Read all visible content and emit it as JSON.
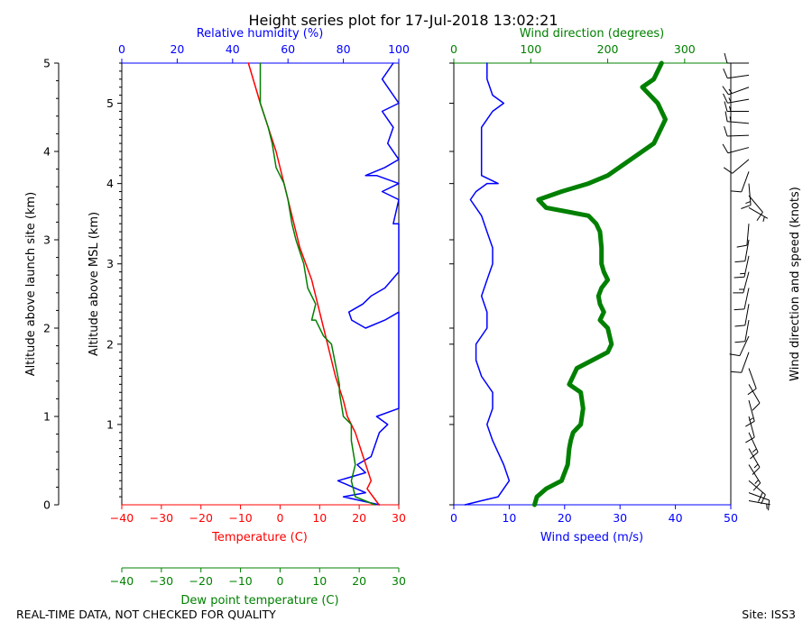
{
  "figure": {
    "title": "Height series plot for 17-Jul-2018 13:02:21",
    "footer_left": "REAL-TIME DATA, NOT CHECKED FOR QUALITY",
    "footer_right": "Site: ISS3"
  },
  "colors": {
    "red": "#ff0000",
    "green": "#008000",
    "blue": "#0000ff",
    "black": "#000000"
  },
  "chart_data": [
    {
      "type": "line",
      "panel": "thermo",
      "title": "Height series plot for 17-Jul-2018 13:02:21",
      "ylabel_outer": "Altitude above launch site (km)",
      "ylabel_inner": "Altitude above MSL (km)",
      "y_outer": {
        "range": [
          0,
          5
        ],
        "ticks": [
          "0",
          "1",
          "2",
          "3",
          "4",
          "5"
        ]
      },
      "y_inner": {
        "ticks": [
          "1",
          "2",
          "3",
          "4",
          "5"
        ]
      },
      "x_temperature": {
        "label": "Temperature (C)",
        "range": [
          -40,
          30
        ],
        "ticks": [
          "−40",
          "−30",
          "−20",
          "−10",
          "0",
          "10",
          "20",
          "30"
        ]
      },
      "x_dewpoint": {
        "label": "Dew point temperature (C)",
        "range": [
          -40,
          30
        ],
        "ticks": [
          "−40",
          "−30",
          "−20",
          "−10",
          "0",
          "10",
          "20",
          "30"
        ]
      },
      "x_humidity": {
        "label": "Relative humidity (%)",
        "range": [
          0,
          100
        ],
        "ticks": [
          "0",
          "20",
          "40",
          "60",
          "80",
          "100"
        ]
      },
      "series": [
        {
          "name": "Temperature",
          "axis": "temperature",
          "color": "#ff0000",
          "points": [
            [
              25,
              0
            ],
            [
              22,
              0.2
            ],
            [
              23,
              0.3
            ],
            [
              21,
              0.6
            ],
            [
              19,
              0.9
            ],
            [
              17,
              1.1
            ],
            [
              16,
              1.3
            ],
            [
              14,
              1.6
            ],
            [
              12,
              2.0
            ],
            [
              10,
              2.4
            ],
            [
              8,
              2.8
            ],
            [
              5,
              3.2
            ],
            [
              3,
              3.6
            ],
            [
              1,
              4.0
            ],
            [
              -1,
              4.4
            ],
            [
              -3,
              4.7
            ],
            [
              -5,
              5.0
            ],
            [
              -8,
              5.5
            ]
          ]
        },
        {
          "name": "Dew point",
          "axis": "temperature",
          "color": "#008000",
          "points": [
            [
              24,
              0
            ],
            [
              19,
              0.1
            ],
            [
              18,
              0.3
            ],
            [
              19,
              0.5
            ],
            [
              18,
              0.8
            ],
            [
              18,
              1.0
            ],
            [
              16,
              1.1
            ],
            [
              16,
              1.1
            ],
            [
              15,
              1.4
            ],
            [
              15,
              1.5
            ],
            [
              13,
              2.0
            ],
            [
              11,
              2.1
            ],
            [
              9,
              2.3
            ],
            [
              8,
              2.3
            ],
            [
              9,
              2.5
            ],
            [
              7,
              2.7
            ],
            [
              6,
              3.0
            ],
            [
              4,
              3.3
            ],
            [
              3,
              3.5
            ],
            [
              2,
              3.8
            ],
            [
              1,
              4.0
            ],
            [
              -1,
              4.2
            ],
            [
              -2,
              4.5
            ],
            [
              -3,
              4.7
            ],
            [
              -5,
              5.0
            ],
            [
              -5,
              5.5
            ]
          ]
        },
        {
          "name": "Relative humidity",
          "axis": "humidity",
          "color": "#0000ff",
          "points": [
            [
              93,
              0
            ],
            [
              80,
              0.1
            ],
            [
              88,
              0.15
            ],
            [
              78,
              0.3
            ],
            [
              88,
              0.4
            ],
            [
              85,
              0.5
            ],
            [
              90,
              0.6
            ],
            [
              93,
              0.9
            ],
            [
              96,
              1.0
            ],
            [
              92,
              1.1
            ],
            [
              100,
              1.2
            ],
            [
              100,
              1.5
            ],
            [
              100,
              2.0
            ],
            [
              100,
              2.4
            ],
            [
              95,
              2.3
            ],
            [
              88,
              2.2
            ],
            [
              83,
              2.3
            ],
            [
              82,
              2.4
            ],
            [
              87,
              2.5
            ],
            [
              90,
              2.6
            ],
            [
              95,
              2.7
            ],
            [
              100,
              2.9
            ],
            [
              100,
              3.5
            ],
            [
              98,
              3.5
            ],
            [
              100,
              3.8
            ],
            [
              94,
              3.9
            ],
            [
              100,
              4.0
            ],
            [
              92,
              4.1
            ],
            [
              88,
              4.1
            ],
            [
              95,
              4.2
            ],
            [
              100,
              4.3
            ],
            [
              96,
              4.5
            ],
            [
              98,
              4.7
            ],
            [
              94,
              4.9
            ],
            [
              100,
              5.0
            ],
            [
              96,
              5.2
            ],
            [
              94,
              5.3
            ],
            [
              98,
              5.5
            ]
          ]
        }
      ]
    },
    {
      "type": "line",
      "panel": "wind",
      "x_speed": {
        "label": "Wind speed (m/s)",
        "range": [
          0,
          50
        ],
        "ticks": [
          "0",
          "10",
          "20",
          "30",
          "40",
          "50"
        ]
      },
      "x_direction": {
        "label": "Wind direction (degrees)",
        "range": [
          0,
          360
        ],
        "ticks": [
          "0",
          "100",
          "200",
          "300"
        ]
      },
      "barb_label": "Wind direction and speed (knots)",
      "series": [
        {
          "name": "Wind speed",
          "axis": "speed",
          "color": "#0000ff",
          "points": [
            [
              2,
              0
            ],
            [
              5,
              0.05
            ],
            [
              8,
              0.1
            ],
            [
              10,
              0.3
            ],
            [
              9,
              0.5
            ],
            [
              7,
              0.8
            ],
            [
              6,
              1.0
            ],
            [
              7,
              1.2
            ],
            [
              7,
              1.4
            ],
            [
              5,
              1.6
            ],
            [
              4,
              1.8
            ],
            [
              4,
              2.0
            ],
            [
              6,
              2.2
            ],
            [
              6,
              2.4
            ],
            [
              5,
              2.6
            ],
            [
              6,
              2.8
            ],
            [
              7,
              3.0
            ],
            [
              7,
              3.2
            ],
            [
              6,
              3.4
            ],
            [
              5,
              3.6
            ],
            [
              3,
              3.8
            ],
            [
              4,
              3.9
            ],
            [
              6,
              4.0
            ],
            [
              8,
              4.0
            ],
            [
              5,
              4.1
            ],
            [
              5,
              4.4
            ],
            [
              5,
              4.7
            ],
            [
              7,
              4.9
            ],
            [
              9,
              5.0
            ],
            [
              7,
              5.1
            ],
            [
              6,
              5.3
            ],
            [
              6,
              5.5
            ]
          ]
        },
        {
          "name": "Wind direction",
          "axis": "direction",
          "color": "#008000",
          "points": [
            [
              105,
              0
            ],
            [
              108,
              0.1
            ],
            [
              120,
              0.2
            ],
            [
              140,
              0.3
            ],
            [
              148,
              0.5
            ],
            [
              150,
              0.7
            ],
            [
              152,
              0.8
            ],
            [
              155,
              0.9
            ],
            [
              165,
              1.0
            ],
            [
              168,
              1.2
            ],
            [
              165,
              1.4
            ],
            [
              150,
              1.5
            ],
            [
              160,
              1.7
            ],
            [
              180,
              1.8
            ],
            [
              200,
              1.9
            ],
            [
              205,
              2.0
            ],
            [
              200,
              2.2
            ],
            [
              190,
              2.3
            ],
            [
              195,
              2.4
            ],
            [
              190,
              2.5
            ],
            [
              188,
              2.6
            ],
            [
              192,
              2.7
            ],
            [
              200,
              2.8
            ],
            [
              195,
              2.9
            ],
            [
              192,
              3.0
            ],
            [
              192,
              3.2
            ],
            [
              190,
              3.4
            ],
            [
              185,
              3.5
            ],
            [
              175,
              3.6
            ],
            [
              120,
              3.7
            ],
            [
              110,
              3.8
            ],
            [
              140,
              3.9
            ],
            [
              175,
              4.0
            ],
            [
              200,
              4.1
            ],
            [
              230,
              4.3
            ],
            [
              260,
              4.5
            ],
            [
              270,
              4.7
            ],
            [
              275,
              4.8
            ],
            [
              265,
              5.0
            ],
            [
              245,
              5.2
            ],
            [
              260,
              5.3
            ],
            [
              270,
              5.5
            ]
          ]
        }
      ],
      "barbs": [
        {
          "alt": 0.05,
          "dir": 100,
          "speed": 4
        },
        {
          "alt": 0.15,
          "dir": 110,
          "speed": 12
        },
        {
          "alt": 0.3,
          "dir": 130,
          "speed": 19
        },
        {
          "alt": 0.5,
          "dir": 148,
          "speed": 17
        },
        {
          "alt": 0.7,
          "dir": 150,
          "speed": 14
        },
        {
          "alt": 0.9,
          "dir": 155,
          "speed": 13
        },
        {
          "alt": 1.1,
          "dir": 165,
          "speed": 12
        },
        {
          "alt": 1.3,
          "dir": 165,
          "speed": 13
        },
        {
          "alt": 1.5,
          "dir": 150,
          "speed": 10
        },
        {
          "alt": 1.7,
          "dir": 160,
          "speed": 8
        },
        {
          "alt": 1.9,
          "dir": 200,
          "speed": 8
        },
        {
          "alt": 2.1,
          "dir": 205,
          "speed": 11
        },
        {
          "alt": 2.3,
          "dir": 190,
          "speed": 12
        },
        {
          "alt": 2.5,
          "dir": 190,
          "speed": 10
        },
        {
          "alt": 2.7,
          "dir": 192,
          "speed": 11
        },
        {
          "alt": 2.9,
          "dir": 195,
          "speed": 13
        },
        {
          "alt": 3.1,
          "dir": 192,
          "speed": 13
        },
        {
          "alt": 3.3,
          "dir": 190,
          "speed": 12
        },
        {
          "alt": 3.5,
          "dir": 185,
          "speed": 10
        },
        {
          "alt": 3.7,
          "dir": 120,
          "speed": 6
        },
        {
          "alt": 3.85,
          "dir": 140,
          "speed": 8
        },
        {
          "alt": 4.0,
          "dir": 175,
          "speed": 13
        },
        {
          "alt": 4.15,
          "dir": 200,
          "speed": 12
        },
        {
          "alt": 4.3,
          "dir": 230,
          "speed": 10
        },
        {
          "alt": 4.45,
          "dir": 255,
          "speed": 10
        },
        {
          "alt": 4.6,
          "dir": 268,
          "speed": 12
        },
        {
          "alt": 4.75,
          "dir": 275,
          "speed": 14
        },
        {
          "alt": 4.9,
          "dir": 270,
          "speed": 16
        },
        {
          "alt": 5.05,
          "dir": 260,
          "speed": 16
        },
        {
          "alt": 5.2,
          "dir": 250,
          "speed": 13
        },
        {
          "alt": 5.35,
          "dir": 262,
          "speed": 12
        },
        {
          "alt": 5.5,
          "dir": 270,
          "speed": 12
        }
      ]
    }
  ]
}
